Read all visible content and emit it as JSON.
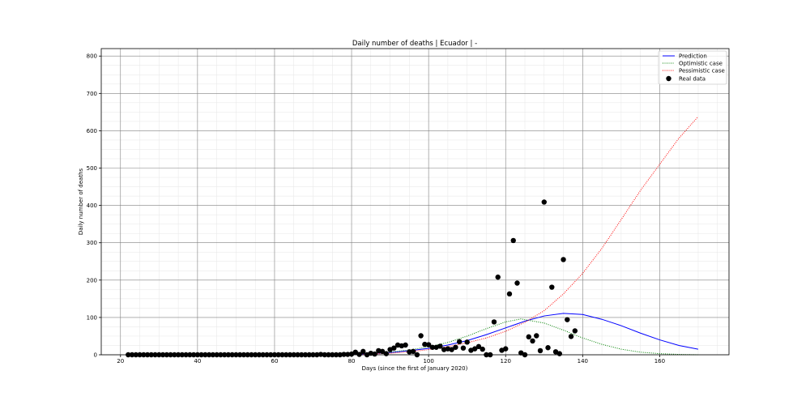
{
  "chart_data": {
    "type": "line",
    "title": "Daily number of deaths | Ecuador | -",
    "xlabel": "Days (since the first of January 2020)",
    "ylabel": "Daily number of deaths",
    "xlim": [
      15,
      178
    ],
    "ylim": [
      0,
      820
    ],
    "xticks": [
      20,
      40,
      60,
      80,
      100,
      120,
      140,
      160
    ],
    "yticks": [
      0,
      100,
      200,
      300,
      400,
      500,
      600,
      700,
      800
    ],
    "grid": true,
    "legend_position": "top-right",
    "colors": {
      "prediction": "#0000ff",
      "optimistic": "#008000",
      "pessimistic": "#ff0000",
      "real": "#000000",
      "grid_major": "#808080",
      "grid_minor": "#e6e6e6"
    },
    "series": [
      {
        "name": "Prediction",
        "style": "solid",
        "x": [
          22,
          30,
          40,
          50,
          60,
          70,
          75,
          80,
          85,
          90,
          95,
          100,
          105,
          110,
          115,
          120,
          125,
          130,
          135,
          140,
          145,
          150,
          155,
          160,
          165,
          170
        ],
        "y": [
          0,
          0,
          0,
          0,
          0,
          0,
          0.5,
          1,
          3,
          6,
          11,
          17,
          26,
          38,
          54,
          72,
          90,
          104,
          111,
          108,
          95,
          78,
          58,
          40,
          25,
          15
        ]
      },
      {
        "name": "Optimistic case",
        "style": "dotted",
        "x": [
          22,
          30,
          40,
          50,
          60,
          70,
          75,
          80,
          85,
          90,
          95,
          100,
          105,
          110,
          115,
          120,
          124,
          130,
          135,
          140,
          145,
          150,
          155,
          160,
          165,
          170
        ],
        "y": [
          0,
          0,
          0,
          0,
          0,
          0,
          0.5,
          1,
          3,
          7,
          13,
          21,
          33,
          50,
          70,
          88,
          96,
          85,
          66,
          45,
          28,
          15,
          7,
          3,
          1,
          0
        ]
      },
      {
        "name": "Pessimistic case",
        "style": "dotted",
        "x": [
          22,
          30,
          40,
          50,
          60,
          70,
          75,
          80,
          85,
          90,
          95,
          100,
          105,
          110,
          115,
          120,
          125,
          130,
          135,
          140,
          145,
          150,
          155,
          160,
          165,
          170
        ],
        "y": [
          0,
          0,
          0,
          0,
          0,
          0,
          0.5,
          1,
          2,
          4,
          8,
          14,
          22,
          32,
          45,
          63,
          87,
          118,
          163,
          218,
          285,
          362,
          440,
          510,
          580,
          638
        ]
      }
    ],
    "scatter": {
      "name": "Real data",
      "x": [
        22,
        23,
        24,
        25,
        26,
        27,
        28,
        29,
        30,
        31,
        32,
        33,
        34,
        35,
        36,
        37,
        38,
        39,
        40,
        41,
        42,
        43,
        44,
        45,
        46,
        47,
        48,
        49,
        50,
        51,
        52,
        53,
        54,
        55,
        56,
        57,
        58,
        59,
        60,
        61,
        62,
        63,
        64,
        65,
        66,
        67,
        68,
        69,
        70,
        71,
        72,
        73,
        74,
        75,
        76,
        77,
        78,
        79,
        80,
        81,
        82,
        83,
        84,
        85,
        86,
        87,
        88,
        89,
        90,
        91,
        92,
        93,
        94,
        95,
        96,
        97,
        98,
        99,
        100,
        101,
        102,
        103,
        104,
        105,
        106,
        107,
        108,
        109,
        110,
        111,
        112,
        113,
        114,
        115,
        116,
        117,
        118,
        119,
        120,
        121,
        122,
        123,
        124,
        125,
        126,
        127,
        128,
        129,
        130,
        131,
        132,
        133,
        134,
        135,
        136,
        137,
        138
      ],
      "y": [
        0,
        0,
        0,
        0,
        0,
        0,
        0,
        0,
        0,
        0,
        0,
        0,
        0,
        0,
        0,
        0,
        0,
        0,
        0,
        0,
        0,
        0,
        0,
        0,
        0,
        0,
        0,
        0,
        0,
        0,
        0,
        0,
        0,
        0,
        0,
        0,
        0,
        0,
        0,
        0,
        0,
        0,
        0,
        0,
        0,
        0,
        0,
        0,
        0,
        0,
        1,
        0,
        0,
        0,
        0,
        0,
        1,
        1,
        2,
        7,
        1,
        9,
        0,
        4,
        2,
        11,
        9,
        3,
        14,
        18,
        26,
        24,
        26,
        8,
        9,
        0,
        51,
        28,
        27,
        20,
        20,
        23,
        14,
        16,
        14,
        20,
        35,
        18,
        34,
        12,
        16,
        22,
        15,
        0,
        0,
        88,
        208,
        12,
        16,
        163,
        306,
        192,
        5,
        0,
        48,
        37,
        51,
        11,
        409,
        19,
        181,
        8,
        3,
        255,
        94,
        49,
        64
      ]
    }
  }
}
